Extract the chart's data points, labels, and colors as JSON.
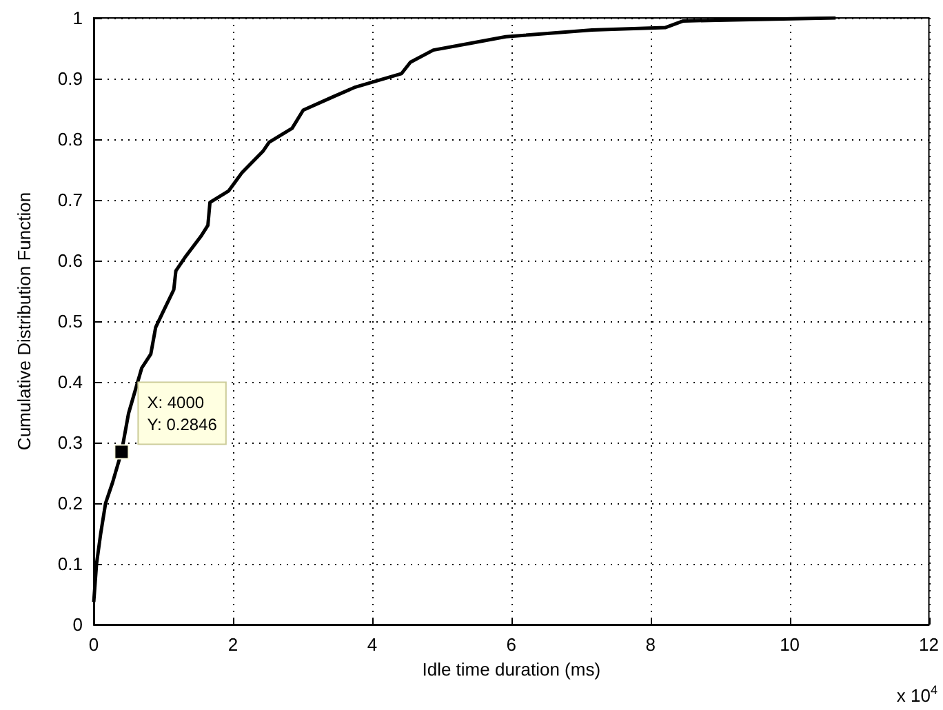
{
  "chart_data": {
    "type": "line",
    "xlabel": "Idle time duration (ms)",
    "ylabel": "Cumulative Distribution Function",
    "x": [
      0,
      0.04,
      0.1,
      0.17,
      0.27,
      0.4,
      0.5,
      0.69,
      0.82,
      0.89,
      0.99,
      1.15,
      1.18,
      1.31,
      1.54,
      1.64,
      1.67,
      1.94,
      2.13,
      2.43,
      2.52,
      2.85,
      3.01,
      3.44,
      3.76,
      4.03,
      4.42,
      4.55,
      4.88,
      5.4,
      5.92,
      7.16,
      8.21,
      8.47,
      9.78,
      10.66
    ],
    "series": [
      {
        "color": "#000000",
        "values": [
          0.037,
          0.1,
          0.15,
          0.2,
          0.234,
          0.285,
          0.348,
          0.423,
          0.446,
          0.49,
          0.514,
          0.552,
          0.583,
          0.605,
          0.64,
          0.658,
          0.696,
          0.715,
          0.745,
          0.78,
          0.795,
          0.818,
          0.848,
          0.87,
          0.886,
          0.895,
          0.908,
          0.927,
          0.947,
          0.958,
          0.969,
          0.98,
          0.984,
          0.995,
          0.998,
          1.0
        ]
      }
    ],
    "xlim": [
      0,
      12
    ],
    "xticks": [
      0,
      2,
      4,
      6,
      8,
      10,
      12
    ],
    "ylim": [
      0,
      1
    ],
    "yticks": [
      0,
      0.1,
      0.2,
      0.3,
      0.4,
      0.5,
      0.6,
      0.7,
      0.8,
      0.9,
      1
    ],
    "grid": true,
    "marker": "none",
    "line_style": "solid",
    "annotations": [
      {
        "text": "X: 4000\nY: 0.2846",
        "x": 0.4,
        "y": 0.2846
      },
      "x 10$^{4}$"
    ]
  }
}
